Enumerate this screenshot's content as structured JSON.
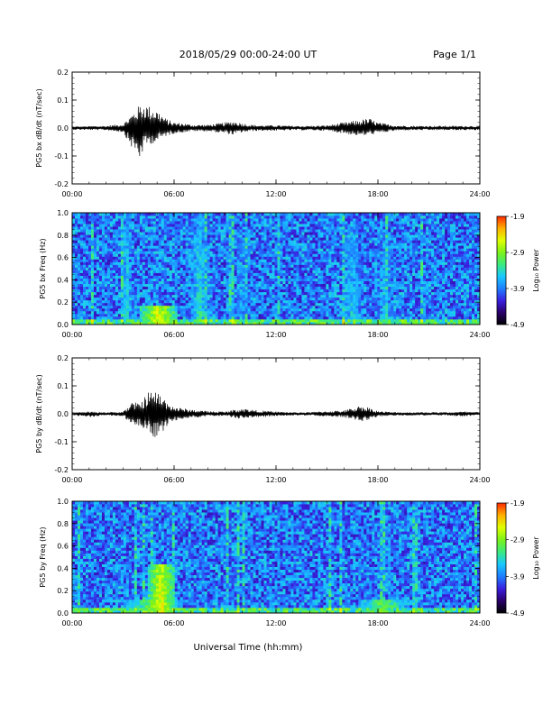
{
  "header": {
    "title": "2018/05/29  00:00-24:00 UT",
    "page": "Page 1/1"
  },
  "colors": {
    "trace": "#000000",
    "spectrogram_background": "#2b2bd0",
    "colormap": [
      "#000000",
      "#2a006a",
      "#3a1fe0",
      "#1f7fff",
      "#19c8ff",
      "#3bea7e",
      "#7df21a",
      "#e0ff00",
      "#ffb000",
      "#ff2a00"
    ]
  },
  "chart_data": [
    {
      "type": "line",
      "panel": "bx-dbdt",
      "ylabel": "PG5 bx dB/dt (nT/sec)",
      "ylim": [
        -0.2,
        0.2
      ],
      "yticks": [
        "0.2",
        "0.1",
        "0.0",
        "-0.1",
        "-0.2"
      ],
      "xlim": [
        "00:00",
        "24:00"
      ],
      "xticks": [
        "00:00",
        "06:00",
        "12:00",
        "18:00",
        "24:00"
      ],
      "grid": false,
      "series": [
        {
          "x": [
            "00:00",
            "02:00",
            "03:00",
            "03:30",
            "04:00",
            "04:15",
            "04:30",
            "05:00",
            "05:30",
            "06:00",
            "06:30",
            "07:00",
            "08:00",
            "09:00",
            "09:30",
            "10:00",
            "10:30",
            "11:00",
            "12:00",
            "13:00",
            "14:00",
            "15:00",
            "16:00",
            "16:30",
            "17:00",
            "17:30",
            "18:00",
            "19:00",
            "20:00",
            "21:00",
            "22:00",
            "23:00",
            "24:00"
          ],
          "upper": [
            0.006,
            0.008,
            0.015,
            0.05,
            0.085,
            0.09,
            0.08,
            0.065,
            0.035,
            0.02,
            0.018,
            0.012,
            0.012,
            0.02,
            0.025,
            0.018,
            0.012,
            0.01,
            0.01,
            0.008,
            0.008,
            0.01,
            0.02,
            0.025,
            0.03,
            0.035,
            0.02,
            0.01,
            0.008,
            0.008,
            0.008,
            0.008,
            0.008
          ],
          "lower": [
            -0.006,
            -0.008,
            -0.015,
            -0.07,
            -0.115,
            -0.07,
            -0.06,
            -0.05,
            -0.03,
            -0.02,
            -0.016,
            -0.012,
            -0.012,
            -0.02,
            -0.025,
            -0.016,
            -0.012,
            -0.01,
            -0.01,
            -0.008,
            -0.008,
            -0.01,
            -0.02,
            -0.025,
            -0.03,
            -0.025,
            -0.02,
            -0.01,
            -0.008,
            -0.008,
            -0.008,
            -0.008,
            -0.008
          ]
        }
      ]
    },
    {
      "type": "heatmap",
      "panel": "bx-spectrogram",
      "ylabel": "PG5 bx Freq (Hz)",
      "ylim": [
        0.0,
        1.0
      ],
      "yticks": [
        "1.0",
        "0.8",
        "0.6",
        "0.4",
        "0.2",
        "0.0"
      ],
      "xlim": [
        "00:00",
        "24:00"
      ],
      "xticks": [
        "00:00",
        "06:00",
        "12:00",
        "18:00",
        "24:00"
      ],
      "colorbar": {
        "label": "Log₁₀ Power",
        "range": [
          -4.9,
          -1.9
        ],
        "ticks": [
          "-1.9",
          "-2.9",
          "-3.9",
          "-4.9"
        ]
      },
      "enhancements": [
        {
          "start": 2.8,
          "end": 3.6,
          "fmax": 0.9,
          "level": -3.3
        },
        {
          "start": 6.8,
          "end": 8.2,
          "fmax": 1.0,
          "level": -3.3
        },
        {
          "start": 4.0,
          "end": 6.2,
          "fmax": 0.18,
          "level": -2.6
        },
        {
          "start": 9.5,
          "end": 10.5,
          "fmax": 0.8,
          "level": -3.6
        },
        {
          "start": 15.5,
          "end": 17.5,
          "fmax": 0.9,
          "level": -3.5
        },
        {
          "start": 17.8,
          "end": 19.0,
          "fmax": 0.8,
          "level": -3.5
        }
      ]
    },
    {
      "type": "line",
      "panel": "by-dbdt",
      "ylabel": "PG5 by dB/dt (nT/sec)",
      "ylim": [
        -0.2,
        0.2
      ],
      "yticks": [
        "0.2",
        "0.1",
        "0.0",
        "-0.1",
        "-0.2"
      ],
      "xlim": [
        "00:00",
        "24:00"
      ],
      "xticks": [
        "00:00",
        "06:00",
        "12:00",
        "18:00",
        "24:00"
      ],
      "grid": false,
      "series": [
        {
          "x": [
            "00:00",
            "01:00",
            "02:00",
            "03:00",
            "03:30",
            "04:00",
            "04:30",
            "05:00",
            "05:30",
            "06:00",
            "06:30",
            "07:00",
            "08:00",
            "09:00",
            "10:00",
            "11:00",
            "12:00",
            "13:00",
            "14:00",
            "15:00",
            "16:00",
            "17:00",
            "17:30",
            "18:00",
            "19:00",
            "20:00",
            "21:00",
            "22:00",
            "23:00",
            "24:00"
          ],
          "upper": [
            0.005,
            0.008,
            0.006,
            0.008,
            0.04,
            0.04,
            0.08,
            0.08,
            0.05,
            0.025,
            0.02,
            0.015,
            0.01,
            0.008,
            0.02,
            0.012,
            0.008,
            0.006,
            0.006,
            0.01,
            0.012,
            0.03,
            0.022,
            0.01,
            0.006,
            0.006,
            0.006,
            0.006,
            0.008,
            0.006
          ],
          "lower": [
            -0.005,
            -0.012,
            -0.006,
            -0.008,
            -0.04,
            -0.05,
            -0.07,
            -0.09,
            -0.05,
            -0.025,
            -0.02,
            -0.015,
            -0.01,
            -0.008,
            -0.02,
            -0.012,
            -0.008,
            -0.006,
            -0.006,
            -0.01,
            -0.012,
            -0.03,
            -0.02,
            -0.01,
            -0.006,
            -0.006,
            -0.006,
            -0.006,
            -0.01,
            -0.006
          ]
        }
      ]
    },
    {
      "type": "heatmap",
      "panel": "by-spectrogram",
      "ylabel": "PG5 by Freq (Hz)",
      "ylim": [
        0.0,
        1.0
      ],
      "yticks": [
        "1.0",
        "0.8",
        "0.6",
        "0.4",
        "0.2",
        "0.0"
      ],
      "xlim": [
        "00:00",
        "24:00"
      ],
      "xticks": [
        "00:00",
        "06:00",
        "12:00",
        "18:00",
        "24:00"
      ],
      "xlabel": "Universal Time (hh:mm)",
      "colorbar": {
        "label": "Log₁₀ Power",
        "range": [
          -4.9,
          -1.9
        ],
        "ticks": [
          "-1.9",
          "-2.9",
          "-3.9",
          "-4.9"
        ]
      },
      "enhancements": [
        {
          "start": 4.5,
          "end": 6.0,
          "fmax": 0.45,
          "level": -2.5
        },
        {
          "start": 3.0,
          "end": 6.5,
          "fmax": 0.12,
          "level": -3.0
        },
        {
          "start": 16.8,
          "end": 19.8,
          "fmax": 0.13,
          "level": -3.0
        },
        {
          "start": 18.4,
          "end": 18.9,
          "fmax": 0.85,
          "level": -3.6
        }
      ]
    }
  ]
}
